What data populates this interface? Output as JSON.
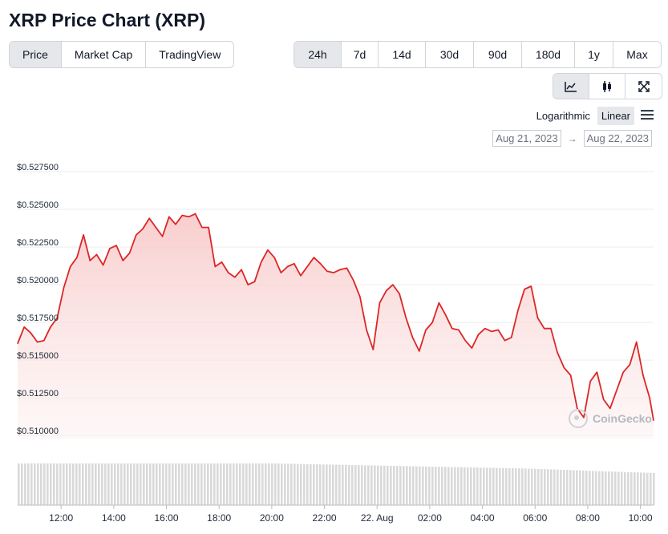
{
  "title": "XRP Price Chart (XRP)",
  "tabs": [
    "Price",
    "Market Cap",
    "TradingView"
  ],
  "active_tab": "Price",
  "ranges": [
    "24h",
    "7d",
    "14d",
    "30d",
    "90d",
    "180d",
    "1y",
    "Max"
  ],
  "active_range": "24h",
  "chart_types": [
    "line-chart-icon",
    "candlestick-icon",
    "expand-icon"
  ],
  "scale": {
    "log_label": "Logarithmic",
    "linear_label": "Linear",
    "active": "Linear"
  },
  "date_range": {
    "from": "Aug 21, 2023",
    "arrow": "→",
    "to": "Aug 22, 2023"
  },
  "watermark": "CoinGecko",
  "colors": {
    "line": "#dc2626",
    "fill_top": "#f8c8c8",
    "volume": "#d9d9d9",
    "grid": "#eeeeee"
  },
  "chart_data": {
    "type": "area",
    "title": "XRP Price Chart (XRP)",
    "ylim": [
      0.5098,
      0.5275
    ],
    "y_ticks": [
      0.51,
      0.5125,
      0.515,
      0.5175,
      0.52,
      0.5225,
      0.525,
      0.5275
    ],
    "y_tick_labels": [
      "$0.510000",
      "$0.512500",
      "$0.515000",
      "$0.517500",
      "$0.520000",
      "$0.522500",
      "$0.525000",
      "$0.527500"
    ],
    "x_range_hours": [
      10.35,
      34.5
    ],
    "x_ticks": [
      12,
      14,
      16,
      18,
      20,
      22,
      24,
      26,
      28,
      30,
      32,
      34
    ],
    "x_tick_labels": [
      "12:00",
      "14:00",
      "16:00",
      "18:00",
      "20:00",
      "22:00",
      "22. Aug",
      "02:00",
      "04:00",
      "06:00",
      "08:00",
      "10:00"
    ],
    "x": [
      10.35,
      10.6,
      10.85,
      11.1,
      11.35,
      11.6,
      11.85,
      12.1,
      12.35,
      12.6,
      12.85,
      13.1,
      13.35,
      13.6,
      13.85,
      14.1,
      14.35,
      14.6,
      14.85,
      15.1,
      15.35,
      15.6,
      15.85,
      16.1,
      16.35,
      16.6,
      16.85,
      17.1,
      17.35,
      17.6,
      17.85,
      18.1,
      18.35,
      18.6,
      18.85,
      19.1,
      19.35,
      19.6,
      19.85,
      20.1,
      20.35,
      20.6,
      20.85,
      21.1,
      21.35,
      21.6,
      21.85,
      22.1,
      22.35,
      22.6,
      22.85,
      23.1,
      23.35,
      23.6,
      23.85,
      24.1,
      24.35,
      24.6,
      24.85,
      25.1,
      25.35,
      25.6,
      25.85,
      26.1,
      26.35,
      26.6,
      26.85,
      27.1,
      27.35,
      27.6,
      27.85,
      28.1,
      28.35,
      28.6,
      28.85,
      29.1,
      29.35,
      29.6,
      29.85,
      30.1,
      30.35,
      30.6,
      30.85,
      31.1,
      31.35,
      31.6,
      31.85,
      32.1,
      32.35,
      32.6,
      32.85,
      33.1,
      33.35,
      33.6,
      33.85,
      34.1,
      34.35,
      34.5
    ],
    "values": [
      0.5161,
      0.5172,
      0.5168,
      0.5162,
      0.5163,
      0.5172,
      0.5178,
      0.5198,
      0.5212,
      0.5218,
      0.5233,
      0.5216,
      0.522,
      0.5213,
      0.5224,
      0.5226,
      0.5216,
      0.5221,
      0.5233,
      0.5237,
      0.5244,
      0.5238,
      0.5232,
      0.5245,
      0.524,
      0.5246,
      0.5245,
      0.5247,
      0.5238,
      0.5238,
      0.5212,
      0.5215,
      0.5208,
      0.5205,
      0.521,
      0.52,
      0.5202,
      0.5215,
      0.5223,
      0.5218,
      0.5208,
      0.5212,
      0.5214,
      0.5206,
      0.5212,
      0.5218,
      0.5214,
      0.5209,
      0.5208,
      0.521,
      0.5211,
      0.5203,
      0.5192,
      0.517,
      0.5157,
      0.5188,
      0.5196,
      0.52,
      0.5194,
      0.5178,
      0.5165,
      0.5156,
      0.517,
      0.5175,
      0.5188,
      0.518,
      0.5171,
      0.517,
      0.5163,
      0.5158,
      0.5167,
      0.5171,
      0.5169,
      0.517,
      0.5163,
      0.5165,
      0.5183,
      0.5197,
      0.5199,
      0.5178,
      0.5171,
      0.5171,
      0.5155,
      0.5145,
      0.514,
      0.5118,
      0.5112,
      0.5136,
      0.5142,
      0.5124,
      0.5118,
      0.513,
      0.5142,
      0.5147,
      0.5162,
      0.514,
      0.5125,
      0.511
    ],
    "volume_series": "24h volume (unlabeled bars)"
  }
}
